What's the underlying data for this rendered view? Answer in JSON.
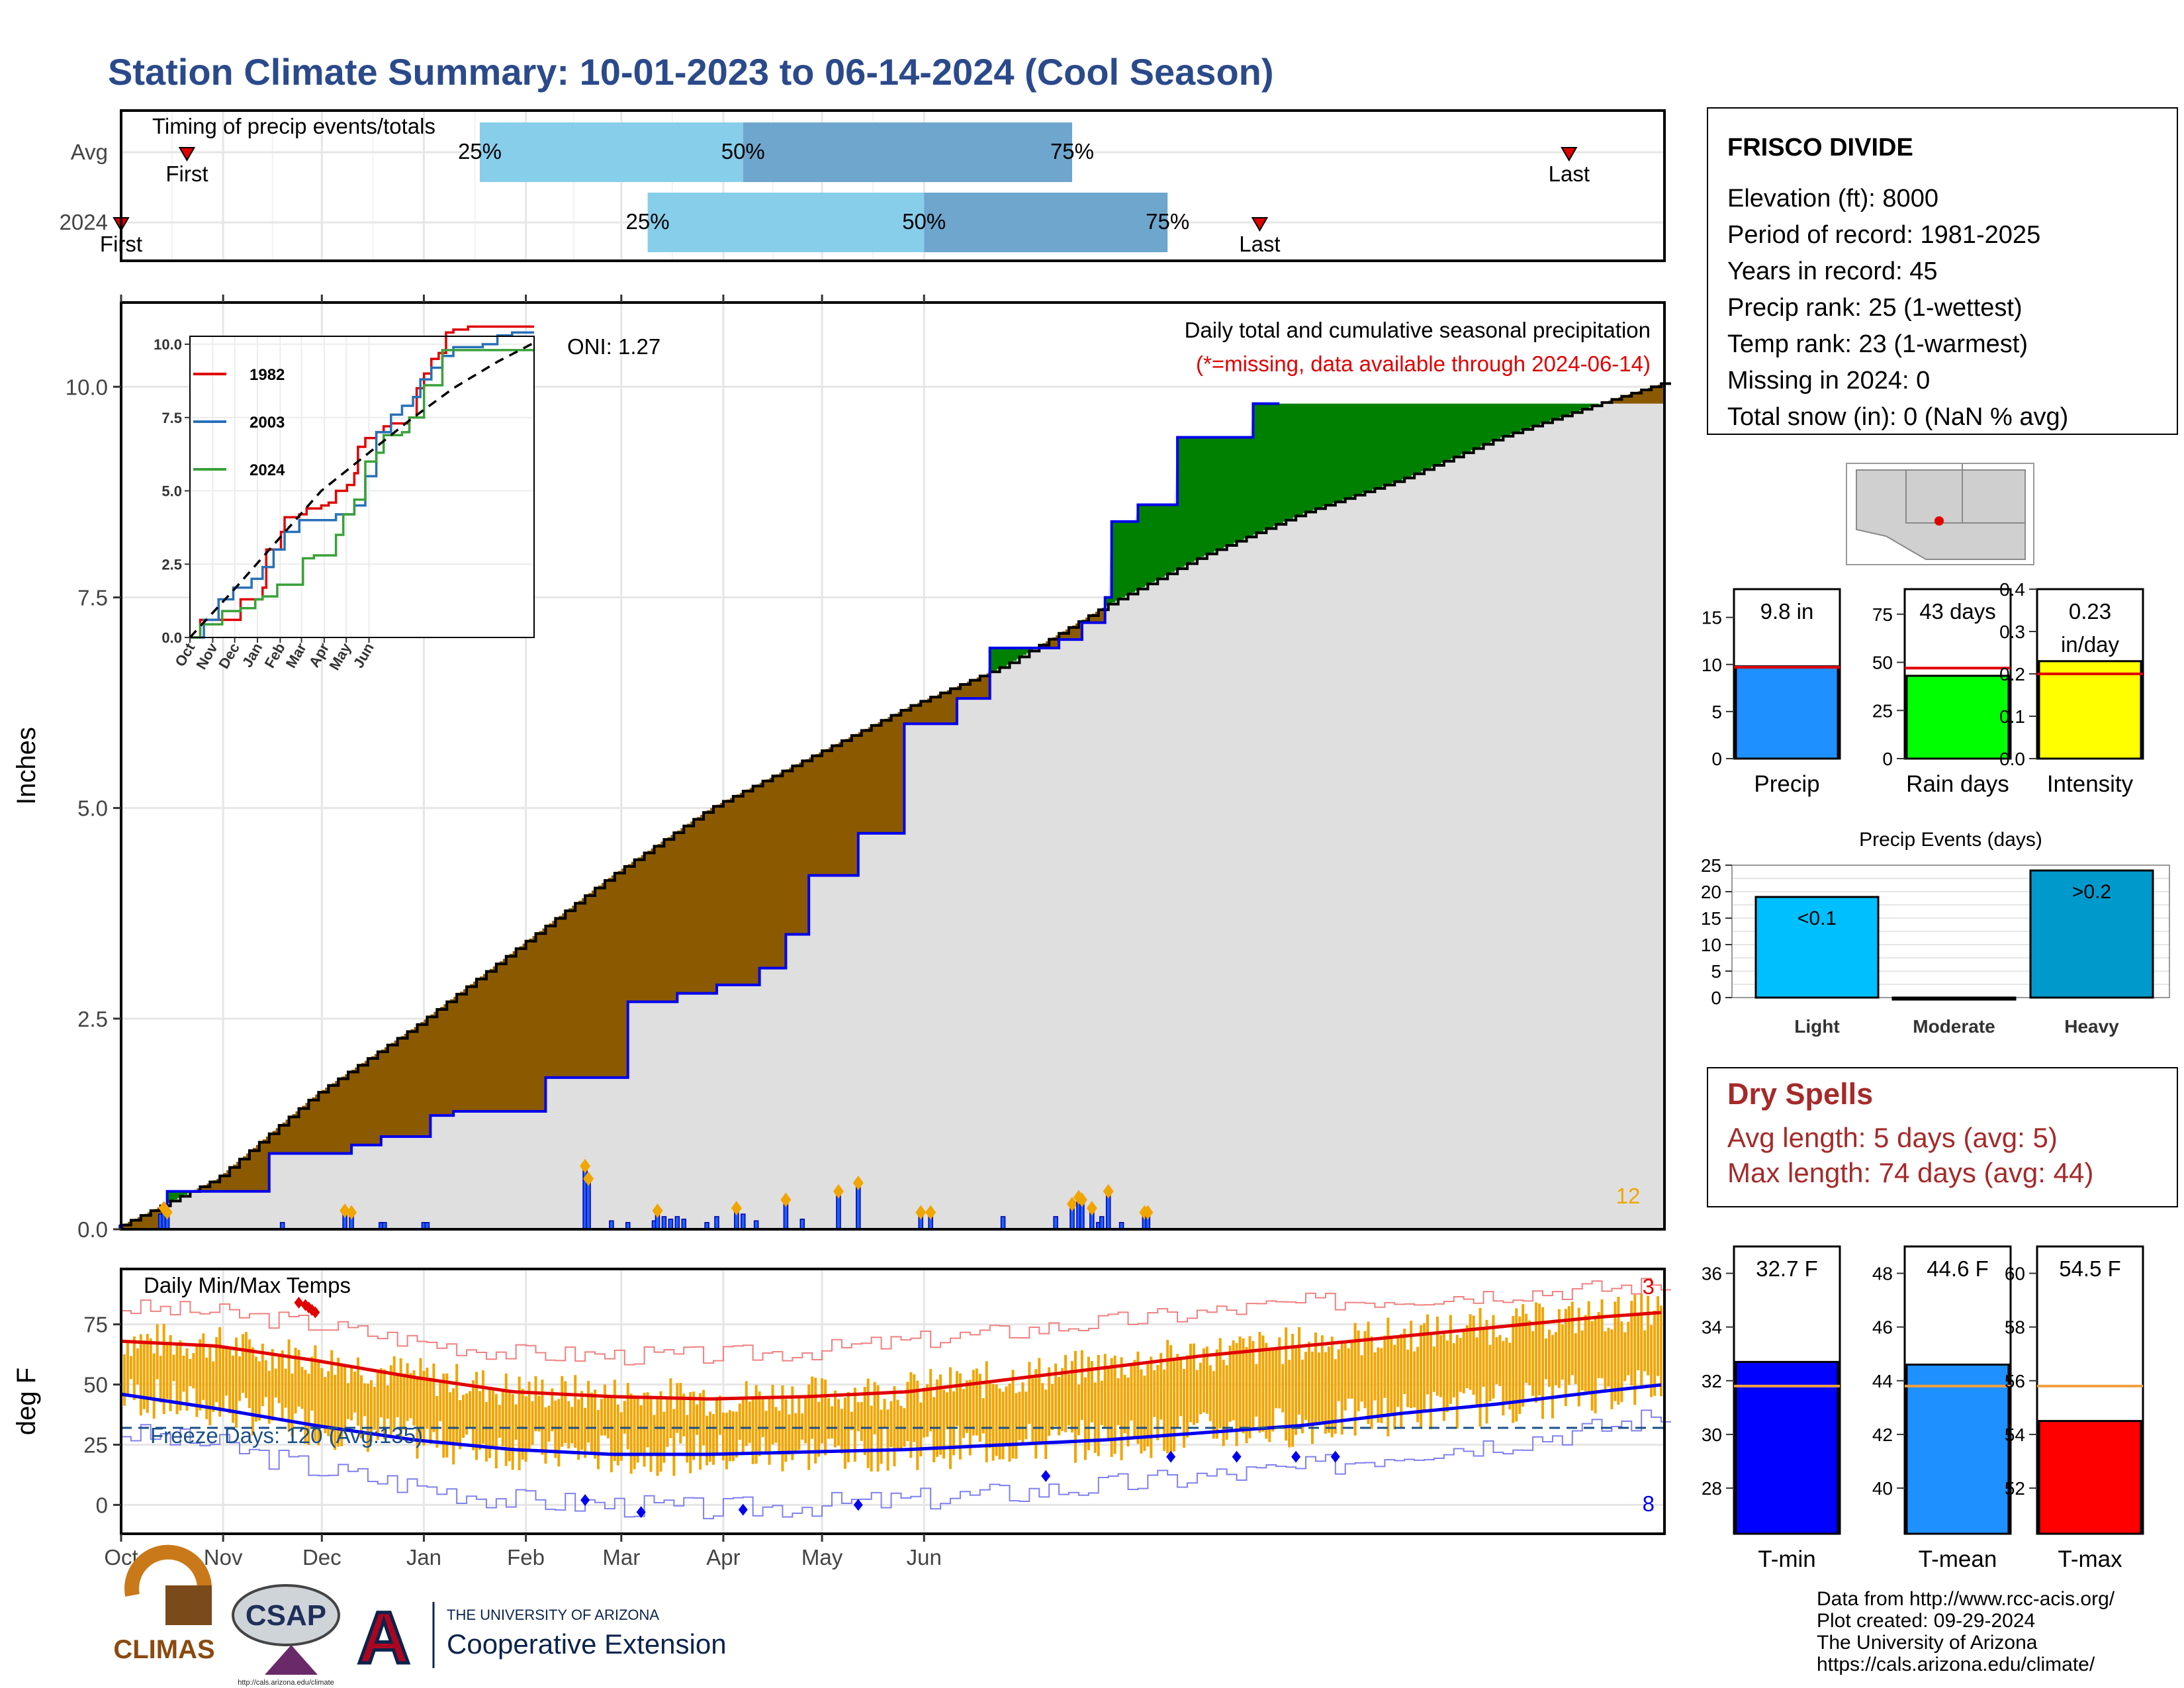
{
  "title": "Station Climate Summary: 10-01-2023 to 06-14-2024 (Cool Season)",
  "colors": {
    "title": "#2b4a8b",
    "precip_fill": "#8b5a00",
    "gray_fill": "#dfdfdf",
    "green_fill": "#008000",
    "blue_line": "#0000ee",
    "gold": "#f0a500",
    "red": "#e00000",
    "dry_red": "#a52a2a"
  },
  "months": [
    "Oct",
    "Nov",
    "Dec",
    "Jan",
    "Feb",
    "Mar",
    "Apr",
    "May",
    "Jun"
  ],
  "timing": {
    "label": "Timing of precip events/totals",
    "rows": [
      {
        "label": "Avg",
        "first_day": 21,
        "p25_day": 110,
        "p50_day": 190,
        "p75_day": 290,
        "last_day": 441,
        "first_label": "First",
        "last_label": "Last",
        "pct_labels": [
          "25%",
          "50%",
          "75%"
        ]
      },
      {
        "label": "2024",
        "first_day": 1,
        "p25_day": 161,
        "p50_day": 245,
        "p75_day": 319,
        "last_day": 347,
        "first_label": "First",
        "last_label": "Last",
        "pct_labels": [
          "25%",
          "50%",
          "75%"
        ]
      }
    ]
  },
  "chart_data": [
    {
      "id": "cumulative_precip",
      "type": "area",
      "ylabel": "Inches",
      "ylim": [
        0,
        11
      ],
      "yticks": [
        "0.0",
        "2.5",
        "5.0",
        "7.5",
        "10.0"
      ],
      "note_title": "Daily total and cumulative seasonal precipitation",
      "note_missing": "(*=missing, data available through 2024-06-14)",
      "oni_label": "ONI: 1.27",
      "corner_count": "12",
      "avg_cumulative": {
        "day": [
          1,
          30,
          60,
          90,
          120,
          150,
          180,
          210,
          240,
          270,
          300,
          330,
          360,
          390,
          420,
          450,
          470
        ],
        "value": [
          0.05,
          0.6,
          1.6,
          2.4,
          3.3,
          4.2,
          5.0,
          5.6,
          6.2,
          6.7,
          7.4,
          8.0,
          8.5,
          8.9,
          9.4,
          9.8,
          10.05
        ]
      },
      "cumulative_2024": {
        "day": [
          1,
          14,
          15,
          45,
          46,
          70,
          71,
          77,
          80,
          93,
          95,
          100,
          102,
          120,
          130,
          154,
          155,
          168,
          170,
          179,
          182,
          193,
          195,
          200,
          203,
          208,
          210,
          215,
          225,
          232,
          239,
          253,
          255,
          262,
          265,
          281,
          286,
          290,
          293,
          298,
          300,
          302,
          310,
          320,
          322,
          330,
          345,
          350,
          355,
          362,
          470
        ],
        "value": [
          0.0,
          0.0,
          0.45,
          0.45,
          0.9,
          0.9,
          1.0,
          1.0,
          1.1,
          1.1,
          1.35,
          1.35,
          1.4,
          1.4,
          1.8,
          1.8,
          2.7,
          2.7,
          2.8,
          2.8,
          2.9,
          2.9,
          3.1,
          3.1,
          3.5,
          3.5,
          4.2,
          4.2,
          4.7,
          4.7,
          6.0,
          6.0,
          6.3,
          6.3,
          6.9,
          6.9,
          7.0,
          7.0,
          7.2,
          7.2,
          7.5,
          8.4,
          8.6,
          8.6,
          9.4,
          9.4,
          9.8,
          9.8,
          9.8,
          9.8,
          9.8
        ]
      },
      "daily_bars": {
        "day": [
          1,
          13,
          14,
          15,
          50,
          69,
          71,
          80,
          81,
          93,
          94,
          142,
          143,
          150,
          155,
          163,
          164,
          166,
          168,
          170,
          172,
          179,
          182,
          188,
          190,
          194,
          203,
          208,
          219,
          225,
          244,
          247,
          269,
          285,
          290,
          292,
          293,
          296,
          298,
          299,
          301,
          305,
          312,
          313
        ],
        "value": [
          0.05,
          0.18,
          0.25,
          0.2,
          0.08,
          0.22,
          0.2,
          0.08,
          0.08,
          0.08,
          0.08,
          0.75,
          0.6,
          0.1,
          0.08,
          0.1,
          0.22,
          0.15,
          0.12,
          0.15,
          0.12,
          0.08,
          0.15,
          0.25,
          0.18,
          0.1,
          0.35,
          0.12,
          0.45,
          0.55,
          0.2,
          0.2,
          0.15,
          0.15,
          0.3,
          0.38,
          0.35,
          0.25,
          0.08,
          0.15,
          0.45,
          0.08,
          0.2,
          0.2
        ]
      },
      "inset": {
        "type": "line",
        "ylim": [
          0,
          10
        ],
        "yticks": [
          "0.0",
          "2.5",
          "5.0",
          "7.5",
          "10.0"
        ],
        "xticks": [
          "Oct",
          "Nov",
          "Dec",
          "Jan",
          "Feb",
          "Mar",
          "Apr",
          "May",
          "Jun"
        ],
        "series": [
          {
            "name": "1982",
            "color": "#e00000",
            "x": [
              1,
              15,
              40,
              70,
              90,
              100,
              105,
              125,
              130,
              150,
              160,
              170,
              180,
              190,
              200,
              215,
              225,
              230,
              240,
              255,
              265,
              275,
              280,
              300,
              310,
              320,
              330,
              340,
              350,
              360,
              380,
              410,
              440,
              470
            ],
            "y": [
              0,
              0.6,
              0.6,
              1.3,
              1.3,
              1.7,
              3.0,
              3.6,
              4.1,
              4.2,
              4.4,
              4.4,
              4.5,
              4.6,
              5.0,
              5.2,
              5.6,
              6.5,
              6.8,
              7.0,
              7.2,
              7.3,
              7.3,
              7.5,
              8.5,
              9.0,
              9.5,
              9.7,
              10.4,
              10.5,
              10.6,
              10.6,
              10.6,
              10.6
            ]
          },
          {
            "name": "2003",
            "color": "#2870b8",
            "x": [
              1,
              20,
              40,
              60,
              85,
              100,
              115,
              130,
              150,
              175,
              200,
              225,
              240,
              255,
              275,
              290,
              305,
              315,
              330,
              345,
              360,
              380,
              400,
              420,
              440,
              470
            ],
            "y": [
              0,
              0.6,
              1.3,
              1.7,
              2.0,
              2.4,
              3.0,
              3.6,
              4.0,
              4.0,
              4.2,
              4.5,
              5.5,
              7.0,
              7.6,
              7.9,
              8.2,
              8.8,
              9.2,
              9.6,
              9.9,
              9.9,
              10.0,
              10.3,
              10.4,
              10.4
            ]
          },
          {
            "name": "2024",
            "color": "#3aa13a",
            "x": [
              1,
              15,
              45,
              70,
              90,
              100,
              120,
              155,
              170,
              200,
              210,
              225,
              240,
              255,
              265,
              290,
              300,
              320,
              345,
              470
            ],
            "y": [
              0,
              0.45,
              0.9,
              1.0,
              1.3,
              1.4,
              1.8,
              2.7,
              2.8,
              3.5,
              4.2,
              4.7,
              6.0,
              6.3,
              6.9,
              7.0,
              7.5,
              8.6,
              9.8,
              9.8
            ]
          }
        ],
        "avg_dashed": {
          "x": [
            1,
            60,
            120,
            180,
            240,
            300,
            360,
            420,
            470
          ],
          "y": [
            0,
            1.6,
            3.3,
            5.0,
            6.2,
            7.4,
            8.5,
            9.4,
            10.05
          ]
        }
      }
    },
    {
      "id": "precip_summary",
      "type": "bar",
      "categories": [
        "Precip",
        "Rain days",
        "Intensity"
      ],
      "values": [
        9.8,
        43,
        0.23
      ],
      "avg": [
        9.7,
        47,
        0.2
      ],
      "ylims": [
        [
          0,
          18
        ],
        [
          0,
          88
        ],
        [
          0,
          0.4
        ]
      ],
      "yticks": [
        [
          "0",
          "5",
          "10",
          "15"
        ],
        [
          "0",
          "25",
          "50",
          "75"
        ],
        [
          "0.0",
          "0.1",
          "0.2",
          "0.3",
          "0.4"
        ]
      ],
      "value_labels": [
        "9.8 in",
        "43 days",
        "0.23"
      ],
      "unit_labels": [
        "",
        "",
        "in/day"
      ],
      "colors": [
        "#1e90ff",
        "#00ff00",
        "#ffff00"
      ]
    },
    {
      "id": "precip_events",
      "type": "bar",
      "title": "Precip Events (days)",
      "categories": [
        "Light",
        "Moderate",
        "Heavy"
      ],
      "values": [
        19,
        0,
        24
      ],
      "value_labels": [
        "<0.1",
        "",
        ">0.2"
      ],
      "ylim": [
        0,
        25
      ],
      "yticks": [
        "0",
        "5",
        "10",
        "15",
        "20",
        "25"
      ],
      "colors": [
        "#00bfff",
        "#1e90ff",
        "#0099cc"
      ]
    },
    {
      "id": "temps",
      "type": "line",
      "title": "Daily Min/Max Temps",
      "ylabel": "deg F",
      "ylim": [
        -12,
        98
      ],
      "yticks": [
        "0",
        "25",
        "50",
        "75"
      ],
      "freeze_label": "Freeze Days: 120 (Avg:135)",
      "freeze_line": 32,
      "top_count": "3",
      "bottom_count": "8",
      "avg_max": {
        "x": [
          1,
          30,
          60,
          90,
          120,
          150,
          180,
          210,
          240,
          270,
          300,
          330,
          360,
          390,
          420,
          450,
          470
        ],
        "y": [
          68,
          66,
          60,
          53,
          47,
          45,
          44,
          45,
          47,
          52,
          57,
          62,
          66,
          70,
          74,
          78,
          80
        ]
      },
      "avg_min": {
        "x": [
          1,
          30,
          60,
          90,
          120,
          150,
          180,
          210,
          240,
          270,
          300,
          330,
          360,
          390,
          420,
          450,
          470
        ],
        "y": [
          46,
          40,
          33,
          27,
          23,
          21,
          21,
          22,
          23,
          25,
          27,
          30,
          33,
          38,
          42,
          47,
          50
        ]
      },
      "rec_max": {
        "x": [
          1,
          30,
          60,
          90,
          120,
          150,
          180,
          210,
          240,
          270,
          300,
          330,
          360,
          390,
          420,
          450,
          470
        ],
        "y": [
          82,
          80,
          75,
          68,
          63,
          62,
          62,
          64,
          68,
          72,
          76,
          80,
          84,
          86,
          88,
          90,
          92
        ]
      },
      "rec_min": {
        "x": [
          1,
          30,
          60,
          90,
          120,
          150,
          180,
          210,
          240,
          270,
          300,
          330,
          360,
          390,
          420,
          450,
          470
        ],
        "y": [
          30,
          25,
          15,
          8,
          2,
          0,
          -2,
          0,
          2,
          5,
          8,
          12,
          15,
          22,
          26,
          32,
          38
        ]
      },
      "record_low_days": [
        142,
        159,
        190,
        225,
        282,
        320,
        340,
        358,
        370
      ],
      "record_low_vals": [
        2,
        -3,
        -2,
        0,
        12,
        20,
        20,
        20,
        20
      ],
      "record_high_days": [
        55,
        57,
        58,
        59,
        60
      ],
      "record_high_vals": [
        84,
        83,
        82,
        81,
        80
      ]
    },
    {
      "id": "temp_summary",
      "type": "bar",
      "categories": [
        "T-min",
        "T-mean",
        "T-max"
      ],
      "values": [
        32.7,
        44.6,
        54.5
      ],
      "avg": [
        31.8,
        43.8,
        55.8
      ],
      "value_labels": [
        "32.7 F",
        "44.6 F",
        "54.5 F"
      ],
      "ylims": [
        [
          26.3,
          37
        ],
        [
          38.3,
          49
        ],
        [
          50.3,
          61
        ]
      ],
      "yticks": [
        [
          "28",
          "30",
          "32",
          "34",
          "36"
        ],
        [
          "40",
          "42",
          "44",
          "46",
          "48"
        ],
        [
          "52",
          "54",
          "56",
          "58",
          "60"
        ]
      ],
      "colors": [
        "#0000ff",
        "#1e90ff",
        "#ff0000"
      ]
    }
  ],
  "station": {
    "name": "FRISCO DIVIDE",
    "lines": [
      "Elevation (ft): 8000",
      "Period of record: 1981-2025",
      "Years in record: 45",
      "Precip rank: 25 (1-wettest)",
      "Temp rank: 23 (1-warmest)",
      "Missing in 2024: 0",
      "Total snow (in): 0 (NaN % avg)"
    ]
  },
  "dry_spells": {
    "title": "Dry Spells",
    "avg": "Avg length: 5 days (avg: 5)",
    "max": "Max length: 74 days (avg: 44)"
  },
  "credits": {
    "lines": [
      "Data from http://www.rcc-acis.org/",
      "Plot created: 09-29-2024",
      "The University of Arizona",
      "https://cals.arizona.edu/climate/"
    ],
    "climas": "CLIMAS",
    "csap": "CSAP",
    "csap_url": "http://cals.arizona.edu/climate",
    "ua_small": "THE UNIVERSITY OF ARIZONA",
    "ua_big": "Cooperative Extension"
  }
}
